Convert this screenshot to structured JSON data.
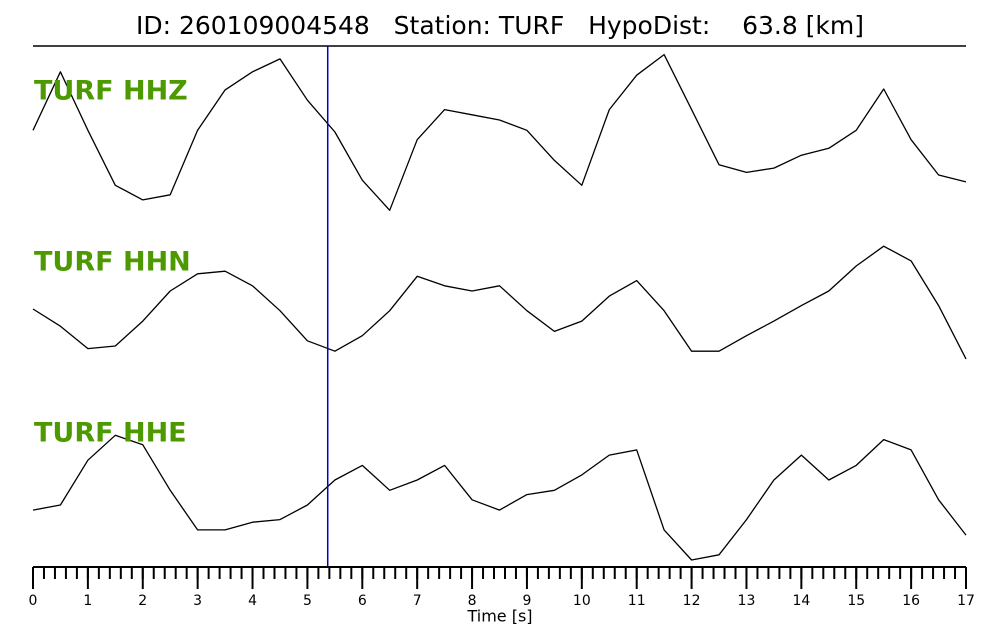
{
  "chart_data": {
    "type": "seismogram",
    "title": "ID: 260109004548   Station: TURF   HypoDist:    63.8 [km]",
    "x_label": "Time [s]",
    "xlim": [
      0,
      17
    ],
    "xticks": [
      0,
      1,
      2,
      3,
      4,
      5,
      6,
      7,
      8,
      9,
      10,
      11,
      12,
      13,
      14,
      15,
      16,
      17
    ],
    "minor_tick_step": 0.2,
    "ylim": [
      -1,
      1
    ],
    "pick": {
      "x": 5.37,
      "color": "#0000cc"
    },
    "x": [
      0,
      0.5,
      1,
      1.5,
      2,
      2.5,
      3,
      3.5,
      4,
      4.5,
      5,
      5.5,
      6,
      6.5,
      7,
      7.5,
      8,
      8.5,
      9,
      9.5,
      10,
      10.5,
      11,
      11.5,
      12,
      12.5,
      13,
      13.5,
      14,
      14.5,
      15,
      15.5,
      16,
      16.5,
      17
    ],
    "series": [
      {
        "name": "TURF HHZ",
        "color": "#000000",
        "label_color": "#4c9a00",
        "values": [
          0.02,
          0.7,
          0.02,
          -0.62,
          -0.79,
          -0.73,
          0.02,
          0.49,
          0.7,
          0.85,
          0.37,
          0.0,
          -0.56,
          -0.91,
          -0.09,
          0.26,
          0.2,
          0.14,
          0.02,
          -0.33,
          -0.62,
          0.26,
          0.66,
          0.9,
          0.26,
          -0.38,
          -0.47,
          -0.42,
          -0.27,
          -0.19,
          0.02,
          0.5,
          -0.09,
          -0.5,
          -0.58
        ]
      },
      {
        "name": "TURF HHN",
        "color": "#000000",
        "label_color": "#4c9a00",
        "values": [
          -0.07,
          -0.27,
          -0.53,
          -0.5,
          -0.21,
          0.14,
          0.34,
          0.37,
          0.2,
          -0.09,
          -0.44,
          -0.56,
          -0.38,
          -0.09,
          0.31,
          0.2,
          0.14,
          0.2,
          -0.09,
          -0.33,
          -0.21,
          0.08,
          0.26,
          -0.09,
          -0.56,
          -0.56,
          -0.38,
          -0.21,
          -0.03,
          0.14,
          0.43,
          0.66,
          0.49,
          -0.03,
          -0.65
        ]
      },
      {
        "name": "TURF HHE",
        "color": "#000000",
        "label_color": "#4c9a00",
        "values": [
          -0.42,
          -0.36,
          0.16,
          0.45,
          0.34,
          -0.19,
          -0.65,
          -0.65,
          -0.56,
          -0.53,
          -0.36,
          -0.07,
          0.1,
          -0.19,
          -0.07,
          0.1,
          -0.3,
          -0.42,
          -0.24,
          -0.19,
          -0.01,
          0.22,
          0.28,
          -0.65,
          -1.0,
          -0.94,
          -0.53,
          -0.07,
          0.22,
          -0.07,
          0.1,
          0.4,
          0.28,
          -0.3,
          -0.71
        ]
      }
    ]
  }
}
